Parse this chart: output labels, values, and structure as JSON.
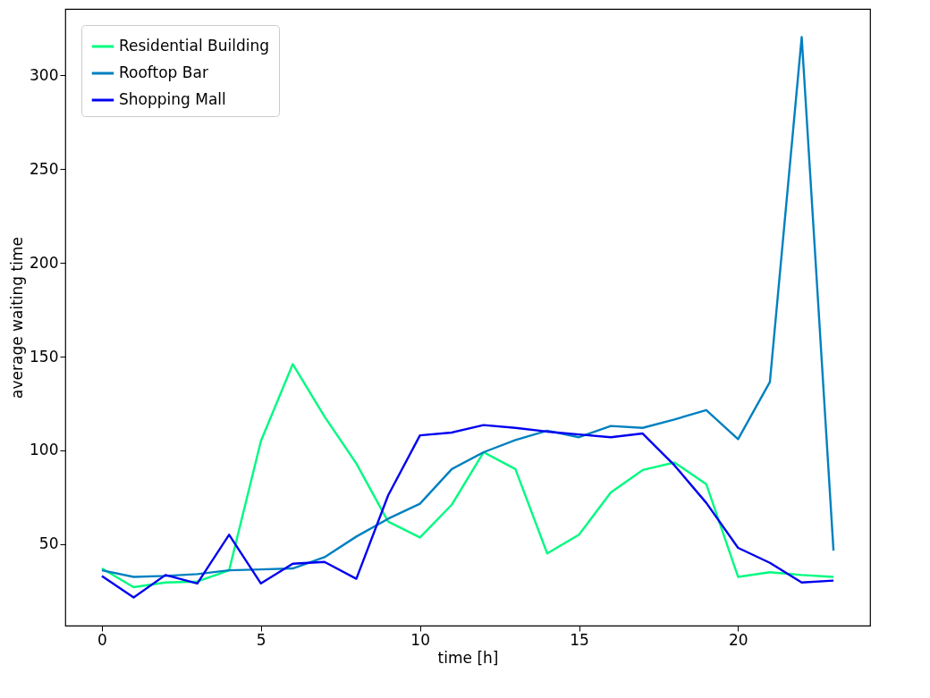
{
  "chart_data": {
    "type": "line",
    "xlabel": "time [h]",
    "ylabel": "average waiting time",
    "x": [
      0,
      1,
      2,
      3,
      4,
      5,
      6,
      7,
      8,
      9,
      10,
      11,
      12,
      13,
      14,
      15,
      16,
      17,
      18,
      19,
      20,
      21,
      22,
      23
    ],
    "series": [
      {
        "name": "Residential Building",
        "color": "#00fa80",
        "values": [
          37,
          27,
          29.5,
          30,
          36,
          105,
          146,
          118,
          93,
          62,
          53.5,
          71,
          99,
          90,
          45,
          55,
          77.5,
          89.5,
          93.5,
          82,
          32.5,
          35,
          33.5,
          32.5
        ]
      },
      {
        "name": "Rooftop Bar",
        "color": "#0080c0",
        "values": [
          36,
          32.5,
          33,
          34,
          36,
          36.5,
          37,
          43,
          54,
          63.5,
          71.5,
          90,
          99,
          105.5,
          110.5,
          107,
          113,
          112,
          116.5,
          121.5,
          106,
          136.5,
          320.5,
          46.5
        ]
      },
      {
        "name": "Shopping Mall",
        "color": "#0000f0",
        "values": [
          33,
          21.5,
          33.5,
          29,
          55,
          29,
          39.5,
          40.5,
          31.5,
          76,
          108,
          109.5,
          113.5,
          112,
          110,
          108.5,
          107,
          109,
          92,
          72,
          48,
          40,
          29.5,
          30.5
        ]
      }
    ],
    "xlim": [
      -1.15,
      24.15
    ],
    "ylim": [
      6.5,
      335.5
    ],
    "xticks": [
      0,
      5,
      10,
      15,
      20
    ],
    "yticks": [
      50,
      100,
      150,
      200,
      250,
      300
    ],
    "legend": "top left",
    "grid": false,
    "marker": "none",
    "line_style": "solid"
  }
}
